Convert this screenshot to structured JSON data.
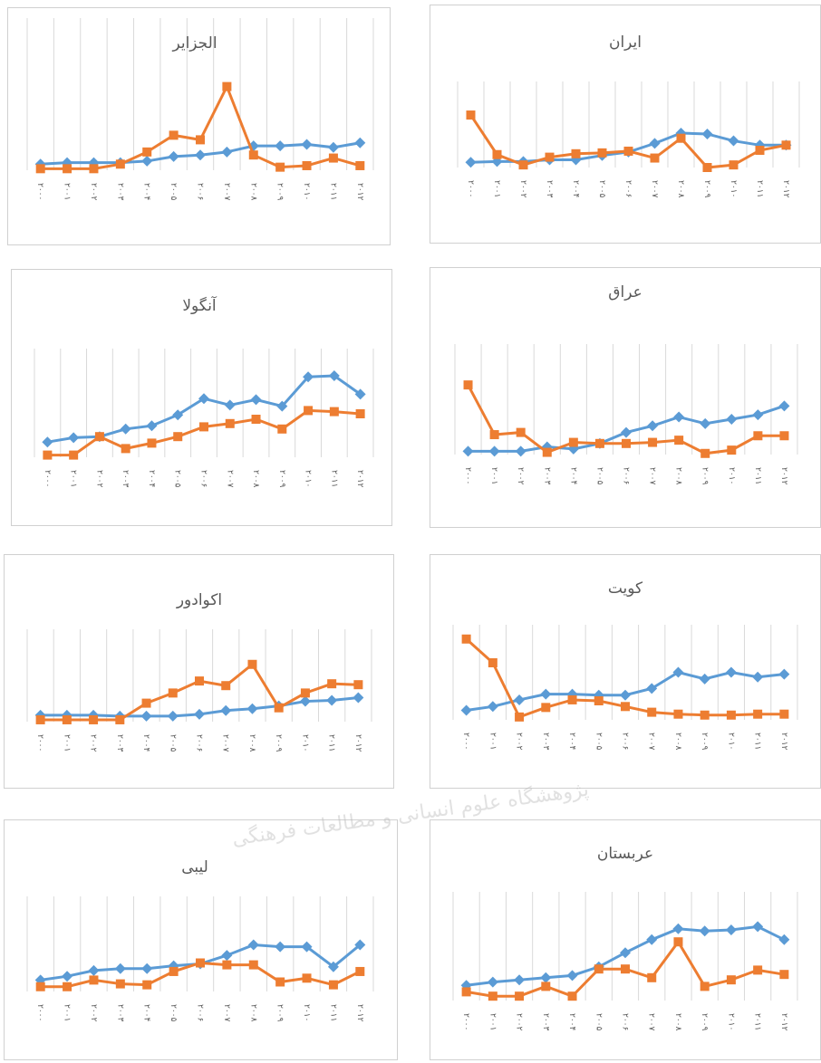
{
  "chart_data": [
    {
      "type": "line",
      "title": "الجزایر",
      "categories": [
        "۲۰۰۰",
        "۲۰۰۱",
        "۲۰۰۲",
        "۲۰۰۳",
        "۲۰۰۴",
        "۲۰۰۵",
        "۲۰۰۶",
        "۲۰۰۷",
        "۲۰۰۸",
        "۲۰۰۹",
        "۲۰۱۰",
        "۲۰۱۱",
        "۲۰۱۲"
      ],
      "ylim": [
        0,
        100
      ],
      "grid": true,
      "series": [
        {
          "color": "#5b9bd5",
          "marker": "diamond",
          "values": [
            4,
            5,
            5,
            5,
            6,
            9,
            10,
            12,
            16,
            16,
            17,
            15,
            18
          ]
        },
        {
          "color": "#ed7d31",
          "marker": "square",
          "values": [
            1,
            1,
            1,
            4,
            12,
            23,
            20,
            55,
            10,
            2,
            3,
            8,
            3
          ]
        }
      ]
    },
    {
      "type": "line",
      "title": "ایران",
      "categories": [
        "۲۰۰۰",
        "۲۰۰۱",
        "۲۰۰۲",
        "۲۰۰۳",
        "۲۰۰۴",
        "۲۰۰۵",
        "۲۰۰۶",
        "۲۰۰۷",
        "۲۰۰۸",
        "۲۰۰۹",
        "۲۰۱۰",
        "۲۰۱۱",
        "۲۰۱۲"
      ],
      "ylim": [
        0,
        100
      ],
      "grid": true,
      "series": [
        {
          "color": "#5b9bd5",
          "marker": "diamond",
          "values": [
            6,
            7,
            7,
            9,
            9,
            14,
            18,
            28,
            40,
            39,
            31,
            26,
            26
          ]
        },
        {
          "color": "#ed7d31",
          "marker": "square",
          "values": [
            61,
            15,
            3,
            12,
            16,
            17,
            19,
            11,
            34,
            0,
            3,
            20,
            26
          ]
        }
      ]
    },
    {
      "type": "line",
      "title": "آنگولا",
      "categories": [
        "۲۰۰۰",
        "۲۰۰۱",
        "۲۰۰۲",
        "۲۰۰۳",
        "۲۰۰۴",
        "۲۰۰۵",
        "۲۰۰۶",
        "۲۰۰۷",
        "۲۰۰۸",
        "۲۰۰۹",
        "۲۰۱۰",
        "۲۰۱۱",
        "۲۰۱۲"
      ],
      "ylim": [
        0,
        100
      ],
      "grid": true,
      "series": [
        {
          "color": "#5b9bd5",
          "marker": "diamond",
          "values": [
            14,
            18,
            19,
            26,
            29,
            39,
            54,
            48,
            53,
            47,
            74,
            75,
            58
          ]
        },
        {
          "color": "#ed7d31",
          "marker": "square",
          "values": [
            2,
            2,
            19,
            8,
            13,
            19,
            28,
            31,
            35,
            26,
            43,
            42,
            40
          ]
        }
      ]
    },
    {
      "type": "line",
      "title": "عراق",
      "categories": [
        "۲۰۰۰",
        "۲۰۰۱",
        "۲۰۰۲",
        "۲۰۰۳",
        "۲۰۰۴",
        "۲۰۰۵",
        "۲۰۰۶",
        "۲۰۰۷",
        "۲۰۰۸",
        "۲۰۰۹",
        "۲۰۱۰",
        "۲۰۱۱",
        "۲۰۱۲"
      ],
      "ylim": [
        0,
        100
      ],
      "grid": true,
      "series": [
        {
          "color": "#5b9bd5",
          "marker": "diamond",
          "values": [
            3,
            3,
            3,
            7,
            5,
            10,
            20,
            26,
            34,
            28,
            32,
            36,
            44
          ]
        },
        {
          "color": "#ed7d31",
          "marker": "square",
          "values": [
            63,
            18,
            20,
            2,
            11,
            10,
            10,
            11,
            13,
            1,
            4,
            17,
            17
          ]
        }
      ]
    },
    {
      "type": "line",
      "title": "اکوادور",
      "categories": [
        "۲۰۰۰",
        "۲۰۰۱",
        "۲۰۰۲",
        "۲۰۰۳",
        "۲۰۰۴",
        "۲۰۰۵",
        "۲۰۰۶",
        "۲۰۰۷",
        "۲۰۰۸",
        "۲۰۰۹",
        "۲۰۱۰",
        "۲۰۱۱",
        "۲۰۱۲"
      ],
      "ylim": [
        0,
        100
      ],
      "grid": true,
      "series": [
        {
          "color": "#5b9bd5",
          "marker": "diamond",
          "values": [
            7,
            7,
            7,
            6,
            6,
            6,
            8,
            12,
            14,
            17,
            22,
            23,
            26
          ]
        },
        {
          "color": "#ed7d31",
          "marker": "square",
          "values": [
            2,
            2,
            2,
            2,
            20,
            31,
            44,
            39,
            62,
            15,
            31,
            41,
            40
          ]
        }
      ]
    },
    {
      "type": "line",
      "title": "کویت",
      "categories": [
        "۲۰۰۰",
        "۲۰۰۱",
        "۲۰۰۲",
        "۲۰۰۳",
        "۲۰۰۴",
        "۲۰۰۵",
        "۲۰۰۶",
        "۲۰۰۷",
        "۲۰۰۸",
        "۲۰۰۹",
        "۲۰۱۰",
        "۲۰۱۱",
        "۲۰۱۲"
      ],
      "ylim": [
        0,
        100
      ],
      "grid": true,
      "series": [
        {
          "color": "#5b9bd5",
          "marker": "diamond",
          "values": [
            10,
            14,
            21,
            27,
            27,
            26,
            26,
            33,
            50,
            43,
            50,
            45,
            48
          ]
        },
        {
          "color": "#ed7d31",
          "marker": "square",
          "values": [
            85,
            60,
            3,
            13,
            21,
            20,
            14,
            8,
            6,
            5,
            5,
            6,
            6
          ]
        }
      ]
    },
    {
      "type": "line",
      "title": "لیبی",
      "categories": [
        "۲۰۰۰",
        "۲۰۰۱",
        "۲۰۰۲",
        "۲۰۰۳",
        "۲۰۰۴",
        "۲۰۰۵",
        "۲۰۰۶",
        "۲۰۰۷",
        "۲۰۰۸",
        "۲۰۰۹",
        "۲۰۱۰",
        "۲۰۱۱",
        "۲۰۱۲"
      ],
      "ylim": [
        0,
        100
      ],
      "grid": true,
      "series": [
        {
          "color": "#5b9bd5",
          "marker": "diamond",
          "values": [
            12,
            16,
            22,
            24,
            24,
            27,
            29,
            38,
            49,
            47,
            47,
            26,
            49
          ]
        },
        {
          "color": "#ed7d31",
          "marker": "square",
          "values": [
            5,
            5,
            12,
            8,
            7,
            21,
            30,
            28,
            28,
            10,
            14,
            7,
            21
          ]
        }
      ]
    },
    {
      "type": "line",
      "title": "عربستان",
      "categories": [
        "۲۰۰۰",
        "۲۰۰۱",
        "۲۰۰۲",
        "۲۰۰۳",
        "۲۰۰۴",
        "۲۰۰۵",
        "۲۰۰۶",
        "۲۰۰۷",
        "۲۰۰۸",
        "۲۰۰۹",
        "۲۰۱۰",
        "۲۰۱۱",
        "۲۰۱۲"
      ],
      "ylim": [
        0,
        100
      ],
      "grid": true,
      "series": [
        {
          "color": "#5b9bd5",
          "marker": "diamond",
          "values": [
            14,
            17,
            19,
            21,
            23,
            31,
            44,
            56,
            66,
            64,
            65,
            68,
            56
          ]
        },
        {
          "color": "#ed7d31",
          "marker": "square",
          "values": [
            8,
            4,
            4,
            13,
            4,
            29,
            29,
            21,
            54,
            13,
            19,
            28,
            24
          ]
        }
      ]
    }
  ],
  "watermark": "پژوهشگاه علوم انسانی و مطالعات فرهنگی"
}
